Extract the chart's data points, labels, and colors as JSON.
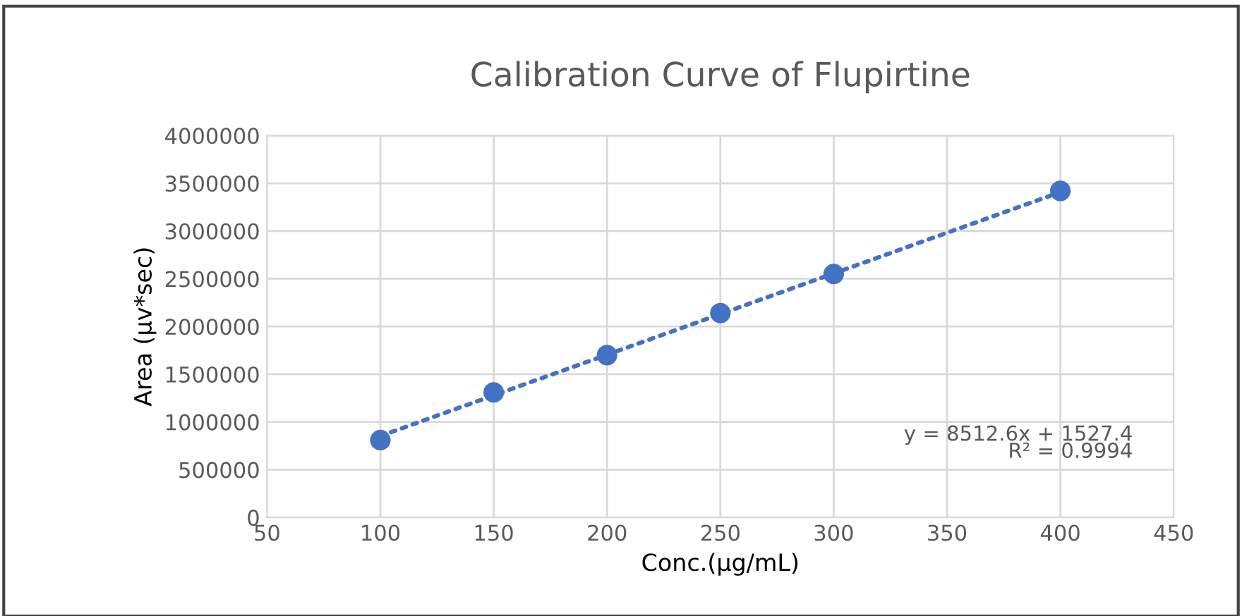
{
  "chart_data": {
    "type": "scatter",
    "title": "Calibration Curve of Flupirtine",
    "xlabel": "Conc.(µg/mL)",
    "ylabel": "Area (µv*sec)",
    "x": [
      100,
      150,
      200,
      250,
      300,
      400
    ],
    "series": [
      {
        "color": "#4472c4",
        "values": [
          810000,
          1310000,
          1700000,
          2140000,
          2550000,
          3420000
        ],
        "marker": "circle"
      },
      {
        "type": "line",
        "color": "#4472c4",
        "x": [
          100,
          400
        ],
        "values": [
          853000,
          3407000
        ],
        "line_style": "dotted",
        "marker": "none"
      }
    ],
    "xlim": [
      50,
      450
    ],
    "xticks": [
      50,
      100,
      150,
      200,
      250,
      300,
      350,
      400,
      450
    ],
    "ylim": [
      0,
      4000000
    ],
    "yticks": [
      0,
      500000,
      1000000,
      1500000,
      2000000,
      2500000,
      3000000,
      3500000,
      4000000
    ],
    "grid": true,
    "legend": false,
    "annotations": [
      "y = 8512.6x + 1527.4",
      "R² = 0.9994"
    ]
  }
}
